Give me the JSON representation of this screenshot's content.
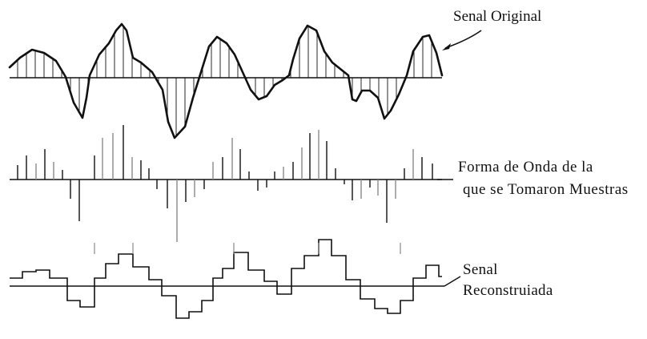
{
  "labels": {
    "original": "Senal Original",
    "samples_line1": "Forma de Onda de la",
    "samples_line2": "que se Tomaron Muestras",
    "reconstructed_line1": "Senal",
    "reconstructed_line2": "Reconstruiada"
  },
  "colors": {
    "ink": "#111111",
    "sample_gray": "#8a8a8a"
  }
}
